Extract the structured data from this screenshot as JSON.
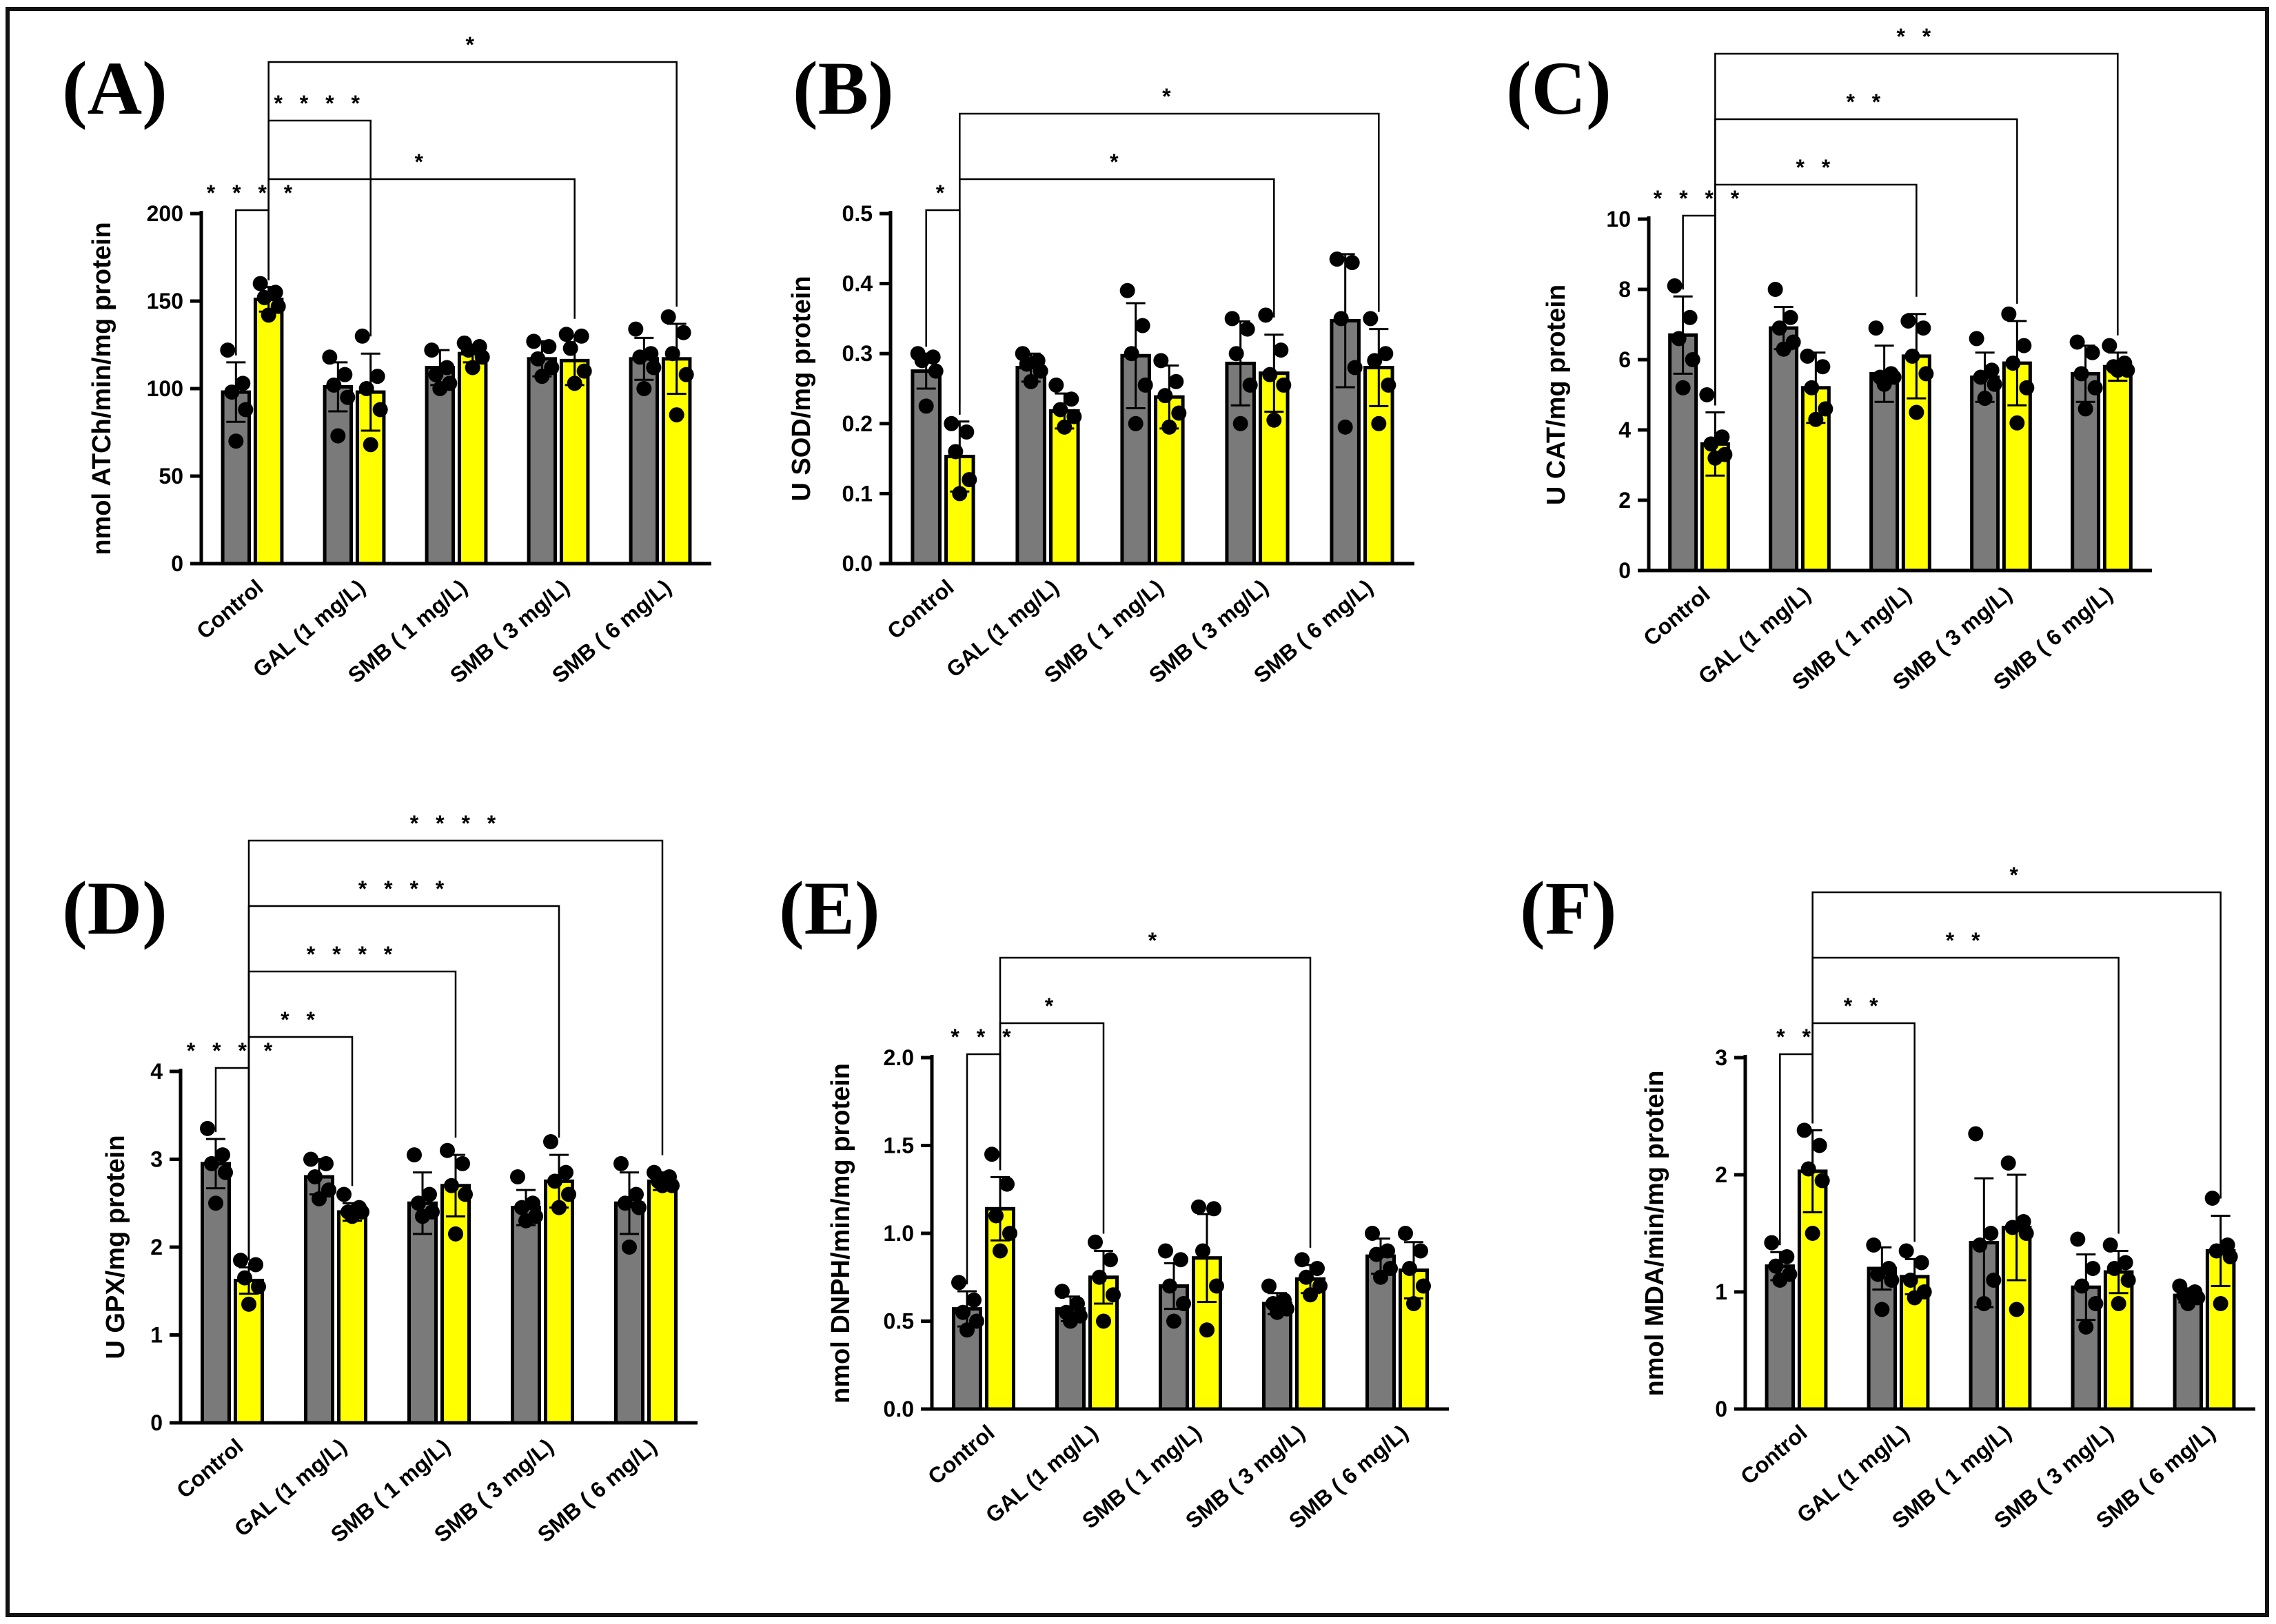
{
  "figure": {
    "bar_colors": {
      "dark": "#7a7a7a",
      "light": "#ffff00"
    },
    "point_color": "#000000"
  },
  "chart_data": [
    {
      "panel": "(A)",
      "type": "bar",
      "ylabel": "nmol ATCh/min/mg protein",
      "ylim": [
        0,
        200
      ],
      "yticks": [
        "0",
        "50",
        "100",
        "150",
        "200"
      ],
      "ytick_values": [
        0,
        50,
        100,
        150,
        200
      ],
      "categories": [
        "Control",
        "GAL (1 mg/L)",
        "SMB ( 1 mg/L)",
        "SMB ( 3 mg/L)",
        "SMB ( 6 mg/L)"
      ],
      "series": [
        {
          "name": "dark",
          "values": [
            98,
            101,
            112,
            117,
            117
          ],
          "errors": [
            17,
            14,
            10,
            10,
            12
          ],
          "points": [
            [
              122,
              103,
              98,
              88,
              70
            ],
            [
              118,
              108,
              102,
              95,
              73
            ],
            [
              122,
              112,
              108,
              103,
              100
            ],
            [
              127,
              124,
              117,
              112,
              107
            ],
            [
              134,
              120,
              118,
              112,
              100
            ]
          ]
        },
        {
          "name": "light",
          "values": [
            151,
            98,
            120,
            116,
            117
          ],
          "errors": [
            7,
            22,
            5,
            14,
            20
          ],
          "points": [
            [
              160,
              155,
              152,
              147,
              142
            ],
            [
              130,
              107,
              100,
              88,
              68
            ],
            [
              126,
              124,
              122,
              118,
              112
            ],
            [
              131,
              130,
              123,
              110,
              103
            ],
            [
              141,
              132,
              120,
              108,
              85
            ]
          ]
        }
      ],
      "brackets": [
        {
          "from": [
            0,
            0
          ],
          "to": [
            0,
            1
          ],
          "label": "****",
          "level": 0
        },
        {
          "from": [
            0,
            1
          ],
          "to": [
            1,
            1
          ],
          "label": "****",
          "level": 1
        },
        {
          "from": [
            0,
            1
          ],
          "to": [
            3,
            1
          ],
          "label": "*",
          "level": 0
        },
        {
          "from": [
            0,
            1
          ],
          "to": [
            4,
            1
          ],
          "label": "*",
          "level": 2
        }
      ]
    },
    {
      "panel": "(B)",
      "type": "bar",
      "ylabel": "U SOD/mg protein",
      "ylim": [
        0,
        0.5
      ],
      "yticks": [
        "0.0",
        "0.1",
        "0.2",
        "0.3",
        "0.4",
        "0.5"
      ],
      "ytick_values": [
        0,
        0.1,
        0.2,
        0.3,
        0.4,
        0.5
      ],
      "categories": [
        "Control",
        "GAL (1 mg/L)",
        "SMB ( 1 mg/L)",
        "SMB ( 3 mg/L)",
        "SMB ( 6 mg/L)"
      ],
      "series": [
        {
          "name": "dark",
          "values": [
            0.275,
            0.28,
            0.297,
            0.286,
            0.347
          ],
          "errors": [
            0.025,
            0.02,
            0.075,
            0.06,
            0.095
          ],
          "points": [
            [
              0.3,
              0.295,
              0.29,
              0.275,
              0.225
            ],
            [
              0.3,
              0.29,
              0.285,
              0.275,
              0.26
            ],
            [
              0.39,
              0.34,
              0.3,
              0.255,
              0.2
            ],
            [
              0.35,
              0.335,
              0.3,
              0.255,
              0.2
            ],
            [
              0.435,
              0.43,
              0.35,
              0.28,
              0.195
            ]
          ]
        },
        {
          "name": "light",
          "values": [
            0.153,
            0.218,
            0.238,
            0.272,
            0.28
          ],
          "errors": [
            0.05,
            0.025,
            0.045,
            0.055,
            0.055
          ],
          "points": [
            [
              0.2,
              0.188,
              0.16,
              0.12,
              0.1
            ],
            [
              0.255,
              0.235,
              0.22,
              0.21,
              0.195
            ],
            [
              0.29,
              0.26,
              0.24,
              0.215,
              0.195
            ],
            [
              0.355,
              0.305,
              0.27,
              0.255,
              0.205
            ],
            [
              0.35,
              0.3,
              0.29,
              0.255,
              0.2
            ]
          ]
        }
      ],
      "brackets": [
        {
          "from": [
            0,
            0
          ],
          "to": [
            0,
            1
          ],
          "label": "*",
          "level": 0
        },
        {
          "from": [
            0,
            1
          ],
          "to": [
            3,
            1
          ],
          "label": "*",
          "level": 0
        },
        {
          "from": [
            0,
            1
          ],
          "to": [
            4,
            1
          ],
          "label": "*",
          "level": 1
        }
      ]
    },
    {
      "panel": "(C)",
      "type": "bar",
      "ylabel": "U  CAT/mg protein",
      "ylim": [
        0,
        10
      ],
      "yticks": [
        "0",
        "2",
        "4",
        "6",
        "8",
        "10"
      ],
      "ytick_values": [
        0,
        2,
        4,
        6,
        8,
        10
      ],
      "categories": [
        "Control",
        "GAL (1 mg/L)",
        "SMB ( 1 mg/L)",
        "SMB ( 3 mg/L)",
        "SMB ( 6 mg/L)"
      ],
      "series": [
        {
          "name": "dark",
          "values": [
            6.7,
            6.9,
            5.6,
            5.5,
            5.6
          ],
          "errors": [
            1.1,
            0.6,
            0.8,
            0.7,
            0.8
          ],
          "points": [
            [
              8.1,
              7.2,
              6.6,
              6.0,
              5.2
            ],
            [
              8.0,
              7.2,
              6.9,
              6.5,
              6.3
            ],
            [
              6.9,
              5.6,
              5.5,
              5.5,
              5.3
            ],
            [
              6.6,
              5.7,
              5.5,
              5.3,
              4.9
            ],
            [
              6.5,
              6.2,
              5.6,
              5.2,
              4.6
            ]
          ]
        },
        {
          "name": "light",
          "values": [
            3.6,
            5.2,
            6.1,
            5.9,
            5.8
          ],
          "errors": [
            0.9,
            1.0,
            1.2,
            1.2,
            0.4
          ],
          "points": [
            [
              5.0,
              3.8,
              3.6,
              3.3,
              3.2
            ],
            [
              6.1,
              5.8,
              5.2,
              4.6,
              4.3
            ],
            [
              7.1,
              6.9,
              6.1,
              5.6,
              4.5
            ],
            [
              7.3,
              6.4,
              5.9,
              5.2,
              4.2
            ],
            [
              6.4,
              5.9,
              5.8,
              5.7,
              5.7
            ]
          ]
        }
      ],
      "brackets": [
        {
          "from": [
            0,
            0
          ],
          "to": [
            0,
            1
          ],
          "label": "****",
          "level": 0
        },
        {
          "from": [
            0,
            1
          ],
          "to": [
            2,
            1
          ],
          "label": "**",
          "level": 0
        },
        {
          "from": [
            0,
            1
          ],
          "to": [
            3,
            1
          ],
          "label": "**",
          "level": 1
        },
        {
          "from": [
            0,
            1
          ],
          "to": [
            4,
            1
          ],
          "label": "**",
          "level": 2
        }
      ]
    },
    {
      "panel": "(D)",
      "type": "bar",
      "ylabel": "U GPX/mg protein",
      "ylim": [
        0,
        4
      ],
      "yticks": [
        "0",
        "1",
        "2",
        "3",
        "4"
      ],
      "ytick_values": [
        0,
        1,
        2,
        3,
        4
      ],
      "categories": [
        "Control",
        "GAL (1 mg/L)",
        "SMB ( 1 mg/L)",
        "SMB ( 3 mg/L)",
        "SMB ( 6 mg/L)"
      ],
      "series": [
        {
          "name": "dark",
          "values": [
            2.95,
            2.8,
            2.5,
            2.45,
            2.5
          ],
          "errors": [
            0.28,
            0.2,
            0.35,
            0.2,
            0.35
          ],
          "points": [
            [
              3.35,
              3.05,
              2.95,
              2.85,
              2.5
            ],
            [
              3.0,
              2.95,
              2.8,
              2.65,
              2.55
            ],
            [
              3.05,
              2.6,
              2.5,
              2.4,
              2.35
            ],
            [
              2.8,
              2.5,
              2.45,
              2.35,
              2.3
            ],
            [
              2.95,
              2.6,
              2.5,
              2.45,
              2.0
            ]
          ]
        },
        {
          "name": "light",
          "values": [
            1.62,
            2.4,
            2.7,
            2.75,
            2.75
          ],
          "errors": [
            0.15,
            0.1,
            0.35,
            0.3,
            0.1
          ],
          "points": [
            [
              1.85,
              1.8,
              1.65,
              1.55,
              1.35
            ],
            [
              2.6,
              2.45,
              2.4,
              2.4,
              2.35
            ],
            [
              3.1,
              2.95,
              2.7,
              2.6,
              2.15
            ],
            [
              3.2,
              2.85,
              2.75,
              2.6,
              2.45
            ],
            [
              2.85,
              2.8,
              2.75,
              2.7,
              2.7
            ]
          ]
        }
      ],
      "brackets": [
        {
          "from": [
            0,
            0
          ],
          "to": [
            0,
            1
          ],
          "label": "****",
          "level": 0
        },
        {
          "from": [
            0,
            1
          ],
          "to": [
            1,
            1
          ],
          "label": "**",
          "level": 0
        },
        {
          "from": [
            0,
            1
          ],
          "to": [
            2,
            1
          ],
          "label": "****",
          "level": 1
        },
        {
          "from": [
            0,
            1
          ],
          "to": [
            3,
            1
          ],
          "label": "****",
          "level": 2
        },
        {
          "from": [
            0,
            1
          ],
          "to": [
            4,
            1
          ],
          "label": "****",
          "level": 3
        }
      ]
    },
    {
      "panel": "(E)",
      "type": "bar",
      "ylabel": "nmol DNPH/min/mg protein",
      "ylim": [
        0,
        2.0
      ],
      "yticks": [
        "0.0",
        "0.5",
        "1.0",
        "1.5",
        "2.0"
      ],
      "ytick_values": [
        0,
        0.5,
        1.0,
        1.5,
        2.0
      ],
      "categories": [
        "Control",
        "GAL (1 mg/L)",
        "SMB ( 1 mg/L)",
        "SMB ( 3 mg/L)",
        "SMB ( 6 mg/L)"
      ],
      "series": [
        {
          "name": "dark",
          "values": [
            0.57,
            0.57,
            0.7,
            0.6,
            0.87
          ],
          "errors": [
            0.1,
            0.07,
            0.13,
            0.06,
            0.1
          ],
          "points": [
            [
              0.72,
              0.62,
              0.55,
              0.5,
              0.45
            ],
            [
              0.67,
              0.6,
              0.55,
              0.53,
              0.5
            ],
            [
              0.9,
              0.85,
              0.7,
              0.6,
              0.5
            ],
            [
              0.7,
              0.62,
              0.6,
              0.57,
              0.55
            ],
            [
              1.0,
              0.9,
              0.88,
              0.8,
              0.75
            ]
          ]
        },
        {
          "name": "light",
          "values": [
            1.14,
            0.75,
            0.86,
            0.74,
            0.79
          ],
          "errors": [
            0.18,
            0.15,
            0.25,
            0.08,
            0.16
          ],
          "points": [
            [
              1.45,
              1.28,
              1.1,
              1.0,
              0.9
            ],
            [
              0.95,
              0.85,
              0.75,
              0.65,
              0.5
            ],
            [
              1.15,
              1.14,
              0.9,
              0.7,
              0.45
            ],
            [
              0.85,
              0.8,
              0.75,
              0.7,
              0.65
            ],
            [
              1.0,
              0.9,
              0.8,
              0.7,
              0.6
            ]
          ]
        }
      ],
      "brackets": [
        {
          "from": [
            0,
            0
          ],
          "to": [
            0,
            1
          ],
          "label": "***",
          "level": 0
        },
        {
          "from": [
            0,
            1
          ],
          "to": [
            1,
            1
          ],
          "label": "*",
          "level": 0
        },
        {
          "from": [
            0,
            1
          ],
          "to": [
            3,
            1
          ],
          "label": "*",
          "level": 1
        }
      ]
    },
    {
      "panel": "(F)",
      "type": "bar",
      "ylabel": "nmol MDA/min/mg protein",
      "ylim": [
        0,
        3
      ],
      "yticks": [
        "0",
        "1",
        "2",
        "3"
      ],
      "ytick_values": [
        0,
        1,
        2,
        3
      ],
      "categories": [
        "Control",
        "GAL (1 mg/L)",
        "SMB ( 1 mg/L)",
        "SMB ( 3 mg/L)",
        "SMB ( 6 mg/L)"
      ],
      "series": [
        {
          "name": "dark",
          "values": [
            1.22,
            1.2,
            1.42,
            1.04,
            0.97
          ],
          "errors": [
            0.12,
            0.18,
            0.55,
            0.28,
            0.06
          ],
          "points": [
            [
              1.42,
              1.3,
              1.22,
              1.15,
              1.1
            ],
            [
              1.4,
              1.2,
              1.15,
              1.1,
              0.85
            ],
            [
              2.35,
              1.5,
              1.4,
              1.1,
              0.9
            ],
            [
              1.45,
              1.2,
              1.05,
              0.9,
              0.7
            ],
            [
              1.05,
              1.0,
              0.97,
              0.95,
              0.9
            ]
          ]
        },
        {
          "name": "light",
          "values": [
            2.03,
            1.13,
            1.55,
            1.17,
            1.35
          ],
          "errors": [
            0.35,
            0.15,
            0.45,
            0.18,
            0.3
          ],
          "points": [
            [
              2.38,
              2.25,
              2.05,
              1.95,
              1.5
            ],
            [
              1.35,
              1.25,
              1.1,
              1.0,
              0.95
            ],
            [
              2.1,
              1.6,
              1.55,
              1.5,
              0.85
            ],
            [
              1.4,
              1.25,
              1.2,
              1.1,
              0.9
            ],
            [
              1.8,
              1.4,
              1.35,
              1.3,
              0.9
            ]
          ]
        }
      ],
      "brackets": [
        {
          "from": [
            0,
            0
          ],
          "to": [
            0,
            1
          ],
          "label": "**",
          "level": 0
        },
        {
          "from": [
            0,
            1
          ],
          "to": [
            1,
            1
          ],
          "label": "**",
          "level": 0
        },
        {
          "from": [
            0,
            1
          ],
          "to": [
            3,
            1
          ],
          "label": "**",
          "level": 1
        },
        {
          "from": [
            0,
            1
          ],
          "to": [
            4,
            1
          ],
          "label": "*",
          "level": 2
        }
      ]
    }
  ]
}
